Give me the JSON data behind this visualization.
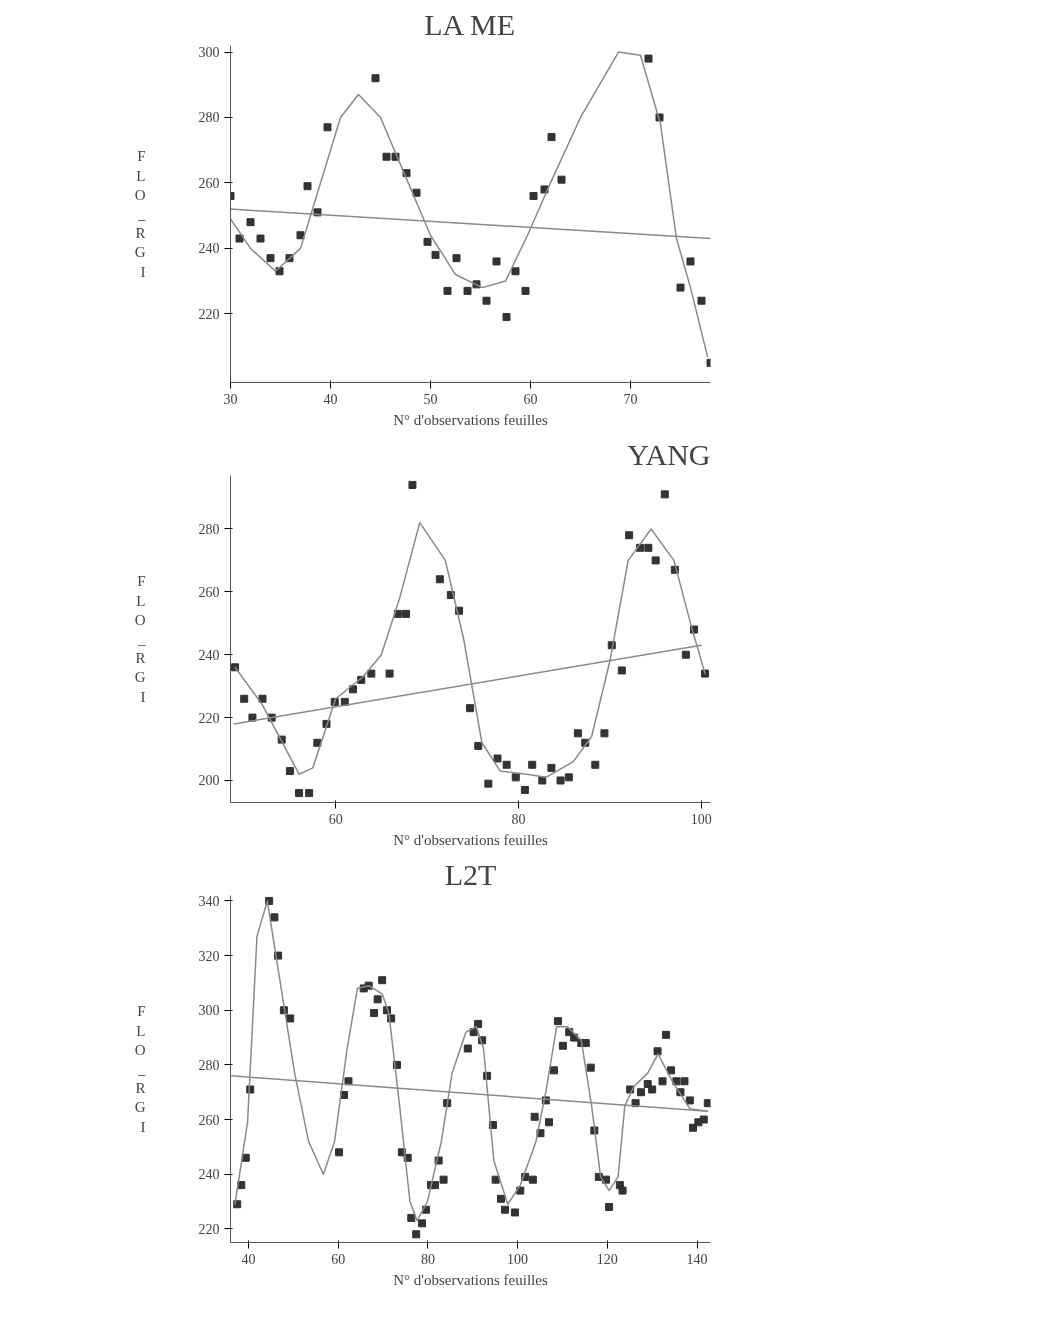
{
  "chart_data": [
    {
      "type": "scatter",
      "title": "LA ME",
      "xlabel": "N° d'observations feuilles",
      "ylabel": "FLO_RGI",
      "xlim": [
        30,
        78
      ],
      "ylim": [
        199,
        302
      ],
      "xticks": [
        30,
        40,
        50,
        60,
        70
      ],
      "yticks": [
        220,
        240,
        260,
        280,
        300
      ],
      "grid": false,
      "series": [
        {
          "marker": "square",
          "color": "#333333",
          "x": [
            30,
            30.9,
            32,
            33,
            34,
            34.9,
            35.9,
            37,
            37.7,
            38.7,
            39.7,
            44.5,
            45.6,
            46.5,
            47.6,
            48.6,
            49.7,
            50.5,
            51.7,
            52.6,
            53.7,
            54.6,
            55.6,
            56.6,
            57.6,
            58.5,
            59.5,
            60.3,
            61.4,
            62.1,
            63.1,
            71.8,
            72.9,
            75,
            76,
            77.1,
            78
          ],
          "values": [
            256,
            243,
            248,
            243,
            237,
            233,
            237,
            244,
            259,
            251,
            277,
            292,
            268,
            268,
            263,
            257,
            242,
            238,
            227,
            237,
            227,
            229,
            224,
            236,
            219,
            233,
            227,
            256,
            258,
            274,
            261,
            298,
            280,
            228,
            236,
            224,
            205
          ]
        },
        {
          "type": "line",
          "marker": "none",
          "color": "#8a8a8a",
          "x": [
            30,
            32,
            34.5,
            37,
            39,
            41,
            42.8,
            45,
            47.5,
            50,
            52.5,
            55.2,
            57.5,
            59.7,
            62,
            65,
            68.8,
            71,
            73,
            74.6,
            76,
            77.7
          ],
          "values": [
            249,
            240,
            233,
            240,
            260,
            280,
            287,
            280,
            262,
            244,
            232,
            228,
            230,
            244,
            260,
            280,
            300,
            299,
            278,
            243,
            228,
            207
          ]
        },
        {
          "type": "line",
          "marker": "none",
          "color": "#8a8a8a",
          "x": [
            30,
            78
          ],
          "values": [
            252,
            243
          ]
        }
      ]
    },
    {
      "type": "scatter",
      "title": "YANG",
      "xlabel": "N° d'observations feuilles",
      "ylabel": "FLO_RGI",
      "xlim": [
        48.5,
        101
      ],
      "ylim": [
        193,
        297
      ],
      "xticks": [
        60,
        80,
        100
      ],
      "yticks": [
        200,
        220,
        240,
        260,
        280
      ],
      "grid": false,
      "series": [
        {
          "marker": "square",
          "color": "#333333",
          "x": [
            49,
            50,
            50.9,
            52,
            53,
            54.1,
            55,
            56,
            57.1,
            58,
            59,
            59.9,
            61,
            61.9,
            62.8,
            63.9,
            65.9,
            66.8,
            67.7,
            68.4,
            71.4,
            72.6,
            73.5,
            74.7,
            75.6,
            76.7,
            77.7,
            78.7,
            79.7,
            80.7,
            81.5,
            82.6,
            83.6,
            84.6,
            85.5,
            86.5,
            87.3,
            88.4,
            89.4,
            90.2,
            91.3,
            92.1,
            93.3,
            94.2,
            95,
            96,
            97.1,
            98.3,
            99.2,
            100.4
          ],
          "values": [
            236,
            226,
            220,
            226,
            220,
            213,
            203,
            196,
            196,
            212,
            218,
            225,
            225,
            229,
            232,
            234,
            234,
            253,
            253,
            294,
            264,
            259,
            254,
            223,
            211,
            199,
            207,
            205,
            201,
            197,
            205,
            200,
            204,
            200,
            201,
            215,
            212,
            205,
            215,
            243,
            235,
            278,
            274,
            274,
            270,
            291,
            267,
            240,
            248,
            234
          ]
        },
        {
          "type": "line",
          "marker": "none",
          "color": "#8a8a8a",
          "x": [
            49,
            52,
            54,
            56,
            57.5,
            60,
            63,
            65,
            67,
            69.2,
            72,
            74,
            76,
            78,
            80.9,
            83,
            86,
            88,
            90,
            92,
            94.5,
            97,
            99,
            100.4
          ],
          "values": [
            236,
            224,
            213,
            202,
            204,
            226,
            233,
            240,
            258,
            282,
            270,
            245,
            212,
            203,
            202,
            201,
            206,
            214,
            238,
            270,
            280,
            270,
            248,
            234
          ]
        },
        {
          "type": "line",
          "marker": "none",
          "color": "#8a8a8a",
          "x": [
            48.9,
            100
          ],
          "values": [
            218,
            243
          ]
        }
      ]
    },
    {
      "type": "scatter",
      "title": "L2T",
      "xlabel": "N° d'observations feuilles",
      "ylabel": "FLO_RGI",
      "xlim": [
        36,
        143
      ],
      "ylim": [
        215,
        342
      ],
      "xticks": [
        40,
        60,
        80,
        100,
        120,
        140
      ],
      "yticks": [
        220,
        240,
        260,
        280,
        300,
        320,
        340
      ],
      "grid": false,
      "series": [
        {
          "marker": "square",
          "color": "#333333",
          "x": [
            37.5,
            38.4,
            39.4,
            40.4,
            44.6,
            45.8,
            46.6,
            47.9,
            49.3,
            60.2,
            61.3,
            62.3,
            65.7,
            66.8,
            68,
            68.8,
            69.8,
            70.9,
            71.8,
            73.1,
            74.2,
            75.5,
            76.3,
            77.4,
            78.7,
            79.6,
            80.7,
            81.6,
            82.4,
            83.5,
            84.3,
            88.9,
            90.2,
            91.2,
            92.1,
            93.2,
            94.5,
            95.1,
            96.3,
            97.2,
            99.4,
            100.6,
            101.7,
            103.4,
            103.8,
            105.1,
            106.3,
            107,
            108.1,
            109,
            110.1,
            111.5,
            112.6,
            114.2,
            115.2,
            116.3,
            117.1,
            118.1,
            119.7,
            120.4,
            122.8,
            123.4,
            125.1,
            126.3,
            127.5,
            129,
            130,
            131.2,
            132.3,
            133.1,
            134.2,
            135.4,
            136.3,
            137.2,
            138.4,
            139.1,
            140.3,
            141.5,
            142.4
          ],
          "values": [
            229,
            236,
            246,
            271,
            340,
            334,
            320,
            300,
            297,
            248,
            269,
            274,
            308,
            309,
            299,
            304,
            311,
            300,
            297,
            280,
            248,
            246,
            224,
            218,
            222,
            227,
            236,
            236,
            245,
            238,
            266,
            286,
            292,
            295,
            289,
            276,
            258,
            238,
            231,
            227,
            226,
            234,
            239,
            238,
            261,
            255,
            267,
            259,
            278,
            296,
            287,
            292,
            290,
            288,
            288,
            279,
            256,
            239,
            238,
            228,
            236,
            234,
            271,
            266,
            270,
            273,
            271,
            285,
            274,
            291,
            278,
            274,
            270,
            274,
            267,
            257,
            259,
            260,
            266
          ]
        },
        {
          "type": "line",
          "marker": "none",
          "color": "#8a8a8a",
          "x": [
            37,
            39.8,
            41.9,
            44.2,
            47.2,
            50.3,
            53.4,
            56.7,
            59.2,
            62,
            64.3,
            66.8,
            69.8,
            71.3,
            73.7,
            76,
            77.6,
            79.9,
            83,
            85.4,
            88.5,
            90.8,
            92.4,
            94.7,
            97.8,
            100.6,
            104.1,
            106.4,
            108.7,
            111.1,
            114.2,
            116.5,
            118.5,
            120.4,
            122.4,
            123.9,
            125.9,
            129,
            131.3,
            134.5,
            138.4,
            142.3
          ],
          "values": [
            229,
            259,
            327,
            340,
            309,
            277,
            252,
            240,
            252,
            286,
            308,
            309,
            306,
            299,
            265,
            230,
            223,
            230,
            252,
            277,
            292,
            294,
            286,
            245,
            229,
            236,
            252,
            271,
            294,
            294,
            289,
            265,
            239,
            234,
            239,
            265,
            272,
            277,
            284,
            274,
            264,
            263
          ]
        },
        {
          "type": "line",
          "marker": "none",
          "color": "#8a8a8a",
          "x": [
            36.3,
            142.3
          ],
          "values": [
            276,
            263
          ]
        }
      ]
    }
  ]
}
